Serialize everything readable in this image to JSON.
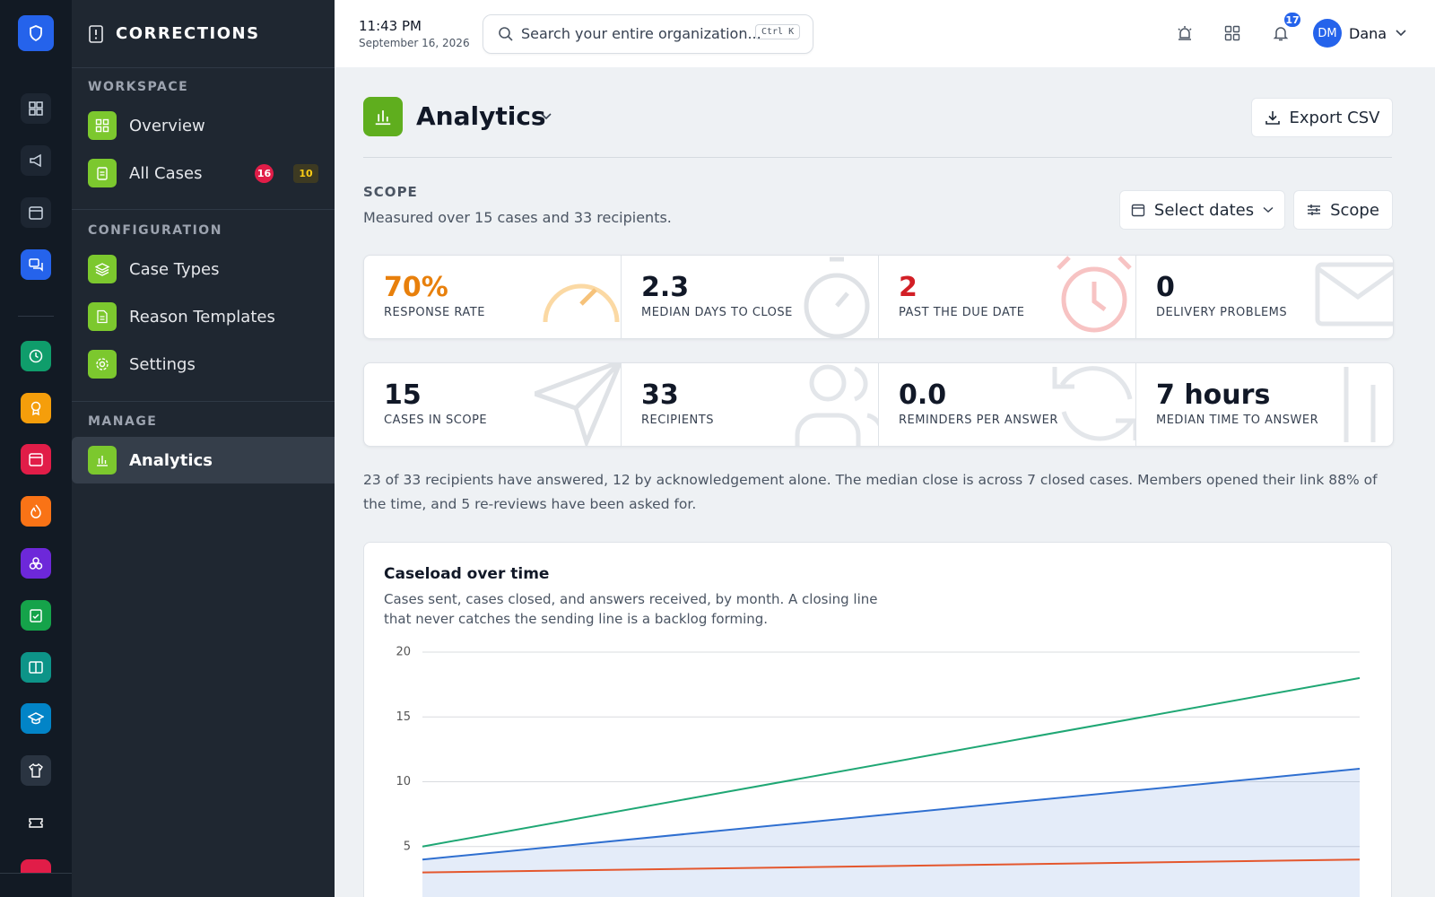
{
  "header": {
    "time": "11:43 PM",
    "date": "September 16, 2026",
    "search_placeholder": "Search your entire organization...",
    "search_shortcut": "Ctrl K",
    "notification_count": 17,
    "user_initials": "DM",
    "user_name": "Dana"
  },
  "sidebar": {
    "title": "CORRECTIONS",
    "sections": [
      {
        "heading": "WORKSPACE",
        "items": [
          {
            "label": "Overview"
          },
          {
            "label": "All Cases",
            "badges": [
              16,
              10
            ]
          }
        ]
      },
      {
        "heading": "CONFIGURATION",
        "items": [
          {
            "label": "Case Types"
          },
          {
            "label": "Reason Templates"
          },
          {
            "label": "Settings"
          }
        ]
      },
      {
        "heading": "MANAGE",
        "items": [
          {
            "label": "Analytics"
          }
        ]
      }
    ]
  },
  "page": {
    "title": "Analytics",
    "export_button": "Export CSV",
    "scope_heading": "SCOPE",
    "scope_text": "Measured over 15 cases and 33 recipients.",
    "select_dates_button": "Select dates",
    "scope_button": "Scope"
  },
  "stats": [
    {
      "value": "70%",
      "label": "RESPONSE RATE"
    },
    {
      "value": "2.3",
      "label": "MEDIAN DAYS TO CLOSE"
    },
    {
      "value": "2",
      "label": "PAST THE DUE DATE"
    },
    {
      "value": "0",
      "label": "DELIVERY PROBLEMS"
    },
    {
      "value": "15",
      "label": "CASES IN SCOPE"
    },
    {
      "value": "33",
      "label": "RECIPIENTS"
    },
    {
      "value": "0.0",
      "label": "REMINDERS PER ANSWER"
    },
    {
      "value": "7 hours",
      "label": "MEDIAN TIME TO ANSWER"
    }
  ],
  "summary": "23 of 33 recipients have answered, 12 by acknowledgement alone. The median close is across 7 closed cases. Members opened their link 88% of the time, and 5 re-reviews have been asked for.",
  "chart_data": {
    "type": "line",
    "title": "Caseload over time",
    "subtitle": "Cases sent, cases closed, and answers received, by month. A closing line that never catches the sending line is a backlog forming.",
    "categories": [
      null,
      null
    ],
    "series": [
      {
        "color": "#1fa774",
        "values": [
          5,
          18
        ]
      },
      {
        "color": "#2f6fd0",
        "values": [
          4,
          11
        ],
        "area": true
      },
      {
        "color": "#e4572e",
        "values": [
          3,
          4
        ]
      }
    ],
    "ylim": [
      0,
      20
    ],
    "yticks": [
      5,
      10,
      15,
      20
    ],
    "grid": true
  }
}
